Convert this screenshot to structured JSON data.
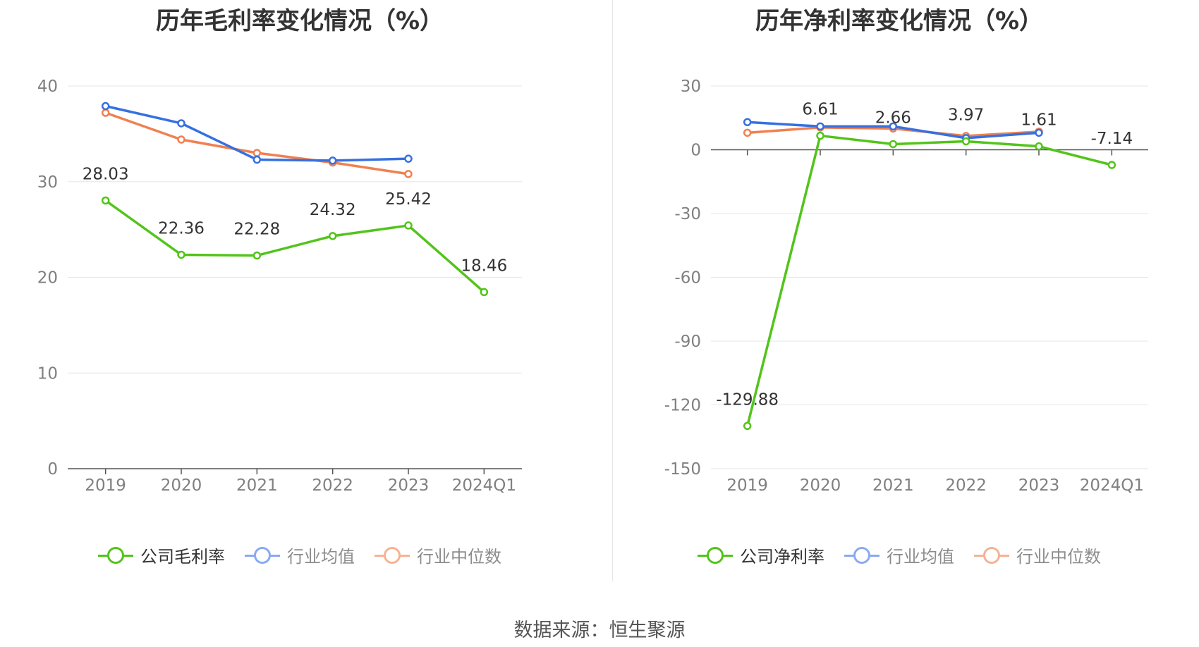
{
  "colors": {
    "company": "#52c41a",
    "avg": "#3670e0",
    "median": "#f08050"
  },
  "source": "数据来源：恒生聚源",
  "chart_data": [
    {
      "type": "line",
      "title": "历年毛利率变化情况（%）",
      "categories": [
        "2019",
        "2020",
        "2021",
        "2022",
        "2023",
        "2024Q1"
      ],
      "ylim": [
        0,
        40
      ],
      "yticks": [
        0,
        10,
        20,
        30,
        40
      ],
      "series": [
        {
          "name": "公司毛利率",
          "values": [
            28.03,
            22.36,
            22.28,
            24.32,
            25.42,
            18.46
          ],
          "labels": [
            "28.03",
            "22.36",
            "22.28",
            "24.32",
            "25.42",
            "18.46"
          ]
        },
        {
          "name": "行业均值",
          "values": [
            37.9,
            36.1,
            32.3,
            32.2,
            32.4,
            null
          ]
        },
        {
          "name": "行业中位数",
          "values": [
            37.2,
            34.4,
            33.0,
            32.0,
            30.8,
            null
          ]
        }
      ],
      "legend_position": "bottom"
    },
    {
      "type": "line",
      "title": "历年净利率变化情况（%）",
      "categories": [
        "2019",
        "2020",
        "2021",
        "2022",
        "2023",
        "2024Q1"
      ],
      "ylim": [
        -150,
        30
      ],
      "yticks": [
        -150,
        -120,
        -90,
        -60,
        -30,
        0,
        30
      ],
      "series": [
        {
          "name": "公司净利率",
          "values": [
            -129.88,
            6.61,
            2.66,
            3.97,
            1.61,
            -7.14
          ],
          "labels": [
            "-129.88",
            "6.61",
            "2.66",
            "3.97",
            "1.61",
            "-7.14"
          ]
        },
        {
          "name": "行业均值",
          "values": [
            13.0,
            11.0,
            11.0,
            5.5,
            8.0,
            null
          ]
        },
        {
          "name": "行业中位数",
          "values": [
            8.0,
            10.5,
            10.0,
            6.5,
            8.5,
            null
          ]
        }
      ],
      "legend_position": "bottom"
    }
  ]
}
